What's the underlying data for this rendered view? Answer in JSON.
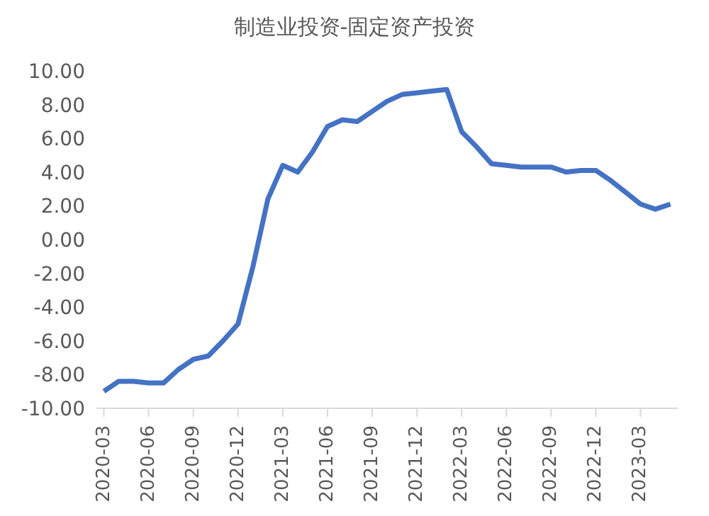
{
  "chart_data": {
    "type": "line",
    "title": "制造业投资-固定资产投资",
    "categories": [
      "2020-03",
      null,
      null,
      "2020-06",
      null,
      null,
      "2020-09",
      null,
      null,
      "2020-12",
      null,
      null,
      "2021-03",
      null,
      null,
      "2021-06",
      null,
      null,
      "2021-09",
      null,
      null,
      "2021-12",
      null,
      null,
      "2022-03",
      null,
      null,
      "2022-06",
      null,
      null,
      "2022-09",
      null,
      null,
      "2022-12",
      null,
      null,
      "2023-03",
      null,
      null
    ],
    "series": [
      {
        "color": "#4472c4",
        "values": [
          -9.0,
          -8.4,
          -8.4,
          -8.5,
          -8.5,
          -7.7,
          -7.1,
          -6.9,
          -6.0,
          -5.0,
          -1.6,
          2.4,
          4.4,
          4.0,
          5.2,
          6.7,
          7.1,
          7.0,
          7.6,
          8.2,
          8.6,
          8.7,
          8.8,
          8.9,
          6.4,
          5.5,
          4.5,
          4.4,
          4.3,
          4.3,
          4.3,
          4.0,
          4.1,
          4.1,
          3.5,
          2.8,
          2.1,
          1.8,
          2.1
        ]
      }
    ],
    "ylim": [
      -10,
      10
    ],
    "yticks": [
      {
        "value": 10,
        "label": "10.00"
      },
      {
        "value": 8,
        "label": "8.00"
      },
      {
        "value": 6,
        "label": "6.00"
      },
      {
        "value": 4,
        "label": "4.00"
      },
      {
        "value": 2,
        "label": "2.00"
      },
      {
        "value": 0,
        "label": "0.00"
      },
      {
        "value": -2,
        "label": "-2.00"
      },
      {
        "value": -4,
        "label": "-4.00"
      },
      {
        "value": -6,
        "label": "-6.00"
      },
      {
        "value": -8,
        "label": "-8.00"
      },
      {
        "value": -10,
        "label": "-10.00"
      }
    ],
    "grid": false,
    "legend": false,
    "marker": "none",
    "line_style": "solid"
  }
}
